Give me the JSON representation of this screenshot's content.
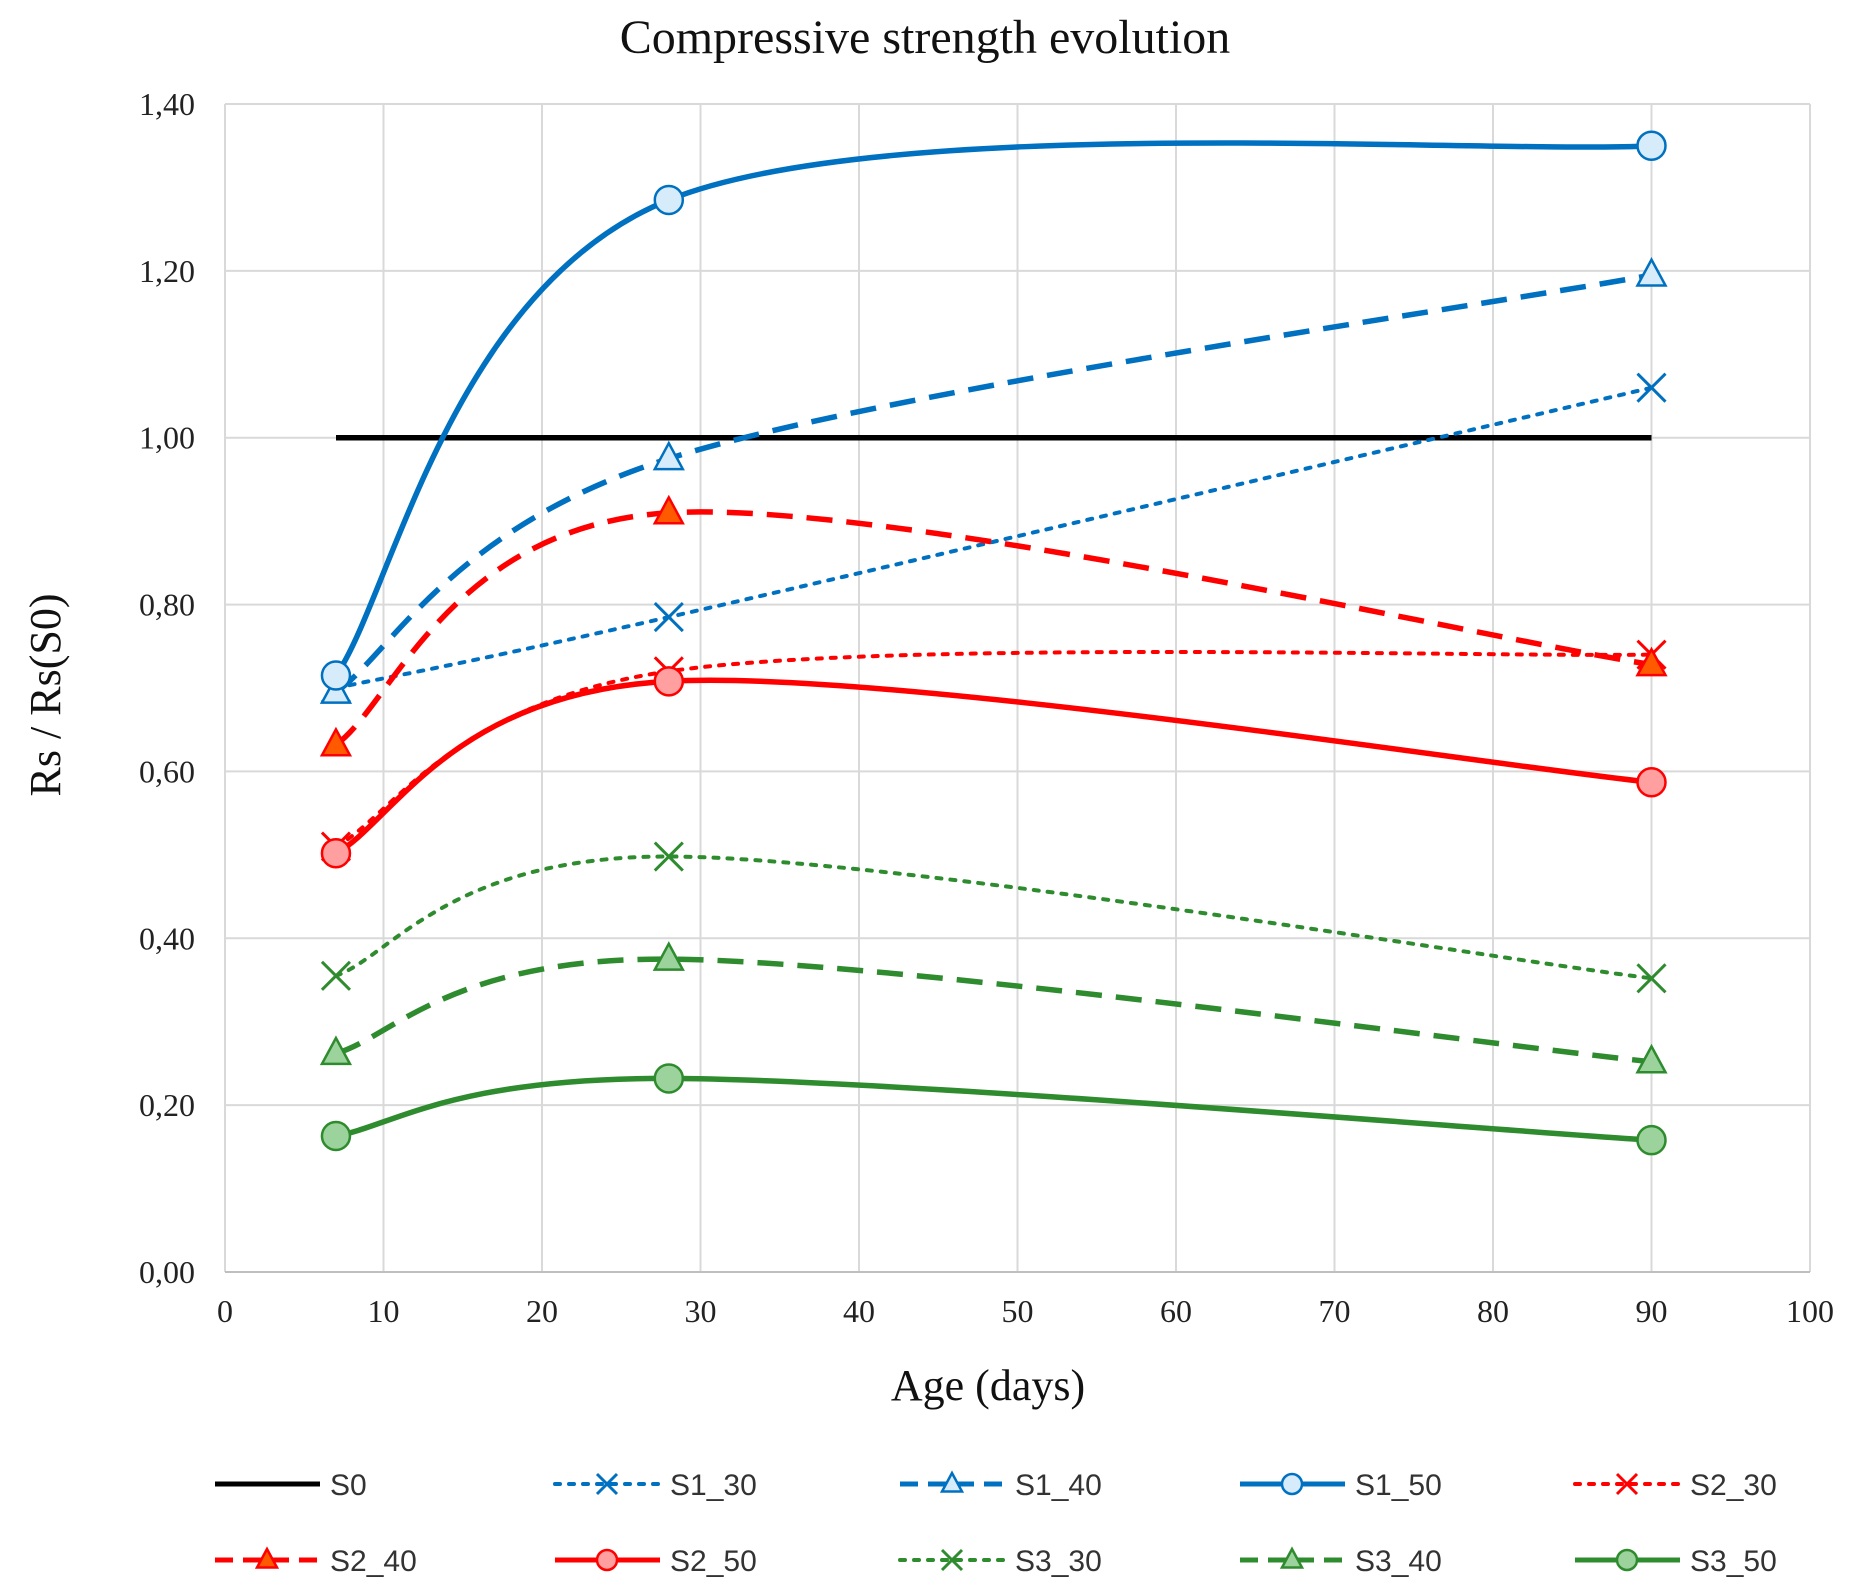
{
  "chart_data": {
    "type": "line",
    "title": "Compressive strength evolution",
    "xlabel": "Age (days)",
    "ylabel": "Rs / Rs(S0)",
    "xlim": [
      0,
      100
    ],
    "ylim": [
      0,
      1.4
    ],
    "x_ticks": [
      0,
      10,
      20,
      30,
      40,
      50,
      60,
      70,
      80,
      90,
      100
    ],
    "x_tick_labels": [
      "0",
      "10",
      "20",
      "30",
      "40",
      "50",
      "60",
      "70",
      "80",
      "90",
      "100"
    ],
    "y_ticks": [
      0,
      0.2,
      0.4,
      0.6,
      0.8,
      1.0,
      1.2,
      1.4
    ],
    "y_tick_labels": [
      "0,00",
      "0,20",
      "0,40",
      "0,60",
      "0,80",
      "1,00",
      "1,20",
      "1,40"
    ],
    "grid": true,
    "legend_position": "bottom",
    "series": [
      {
        "name": "S0",
        "x": [
          7,
          90
        ],
        "values": [
          1.0,
          1.0
        ],
        "color": "#000000",
        "dash": "solid",
        "marker": "none",
        "smooth": false
      },
      {
        "name": "S1_30",
        "x": [
          7,
          28,
          90
        ],
        "values": [
          0.7,
          0.785,
          1.06
        ],
        "color": "#0070C0",
        "dash": "dot",
        "marker": "x",
        "smooth": true
      },
      {
        "name": "S1_40",
        "x": [
          7,
          28,
          90
        ],
        "values": [
          0.695,
          0.975,
          1.195
        ],
        "color": "#0070C0",
        "dash": "dash",
        "marker": "triangle-open",
        "smooth": true
      },
      {
        "name": "S1_50",
        "x": [
          7,
          28,
          90
        ],
        "values": [
          0.715,
          1.285,
          1.35
        ],
        "color": "#0070C0",
        "dash": "solid",
        "marker": "circle-open",
        "smooth": true
      },
      {
        "name": "S2_30",
        "x": [
          7,
          28,
          90
        ],
        "values": [
          0.51,
          0.72,
          0.74
        ],
        "color": "#FF0000",
        "dash": "dot",
        "marker": "x",
        "smooth": true
      },
      {
        "name": "S2_40",
        "x": [
          7,
          28,
          90
        ],
        "values": [
          0.632,
          0.91,
          0.728
        ],
        "color": "#FF0000",
        "dash": "dash",
        "marker": "triangle-filled",
        "smooth": true
      },
      {
        "name": "S2_50",
        "x": [
          7,
          28,
          90
        ],
        "values": [
          0.502,
          0.708,
          0.587
        ],
        "color": "#FF0000",
        "dash": "solid",
        "marker": "circle-filled",
        "smooth": true
      },
      {
        "name": "S3_30",
        "x": [
          7,
          28,
          90
        ],
        "values": [
          0.355,
          0.498,
          0.352
        ],
        "color": "#2E8B2E",
        "dash": "dot",
        "marker": "x",
        "smooth": true
      },
      {
        "name": "S3_40",
        "x": [
          7,
          28,
          90
        ],
        "values": [
          0.262,
          0.375,
          0.252
        ],
        "color": "#2E8B2E",
        "dash": "dash",
        "marker": "triangle-filled",
        "smooth": true
      },
      {
        "name": "S3_50",
        "x": [
          7,
          28,
          90
        ],
        "values": [
          0.163,
          0.232,
          0.158
        ],
        "color": "#2E8B2E",
        "dash": "solid",
        "marker": "circle-filled",
        "smooth": true
      }
    ]
  }
}
